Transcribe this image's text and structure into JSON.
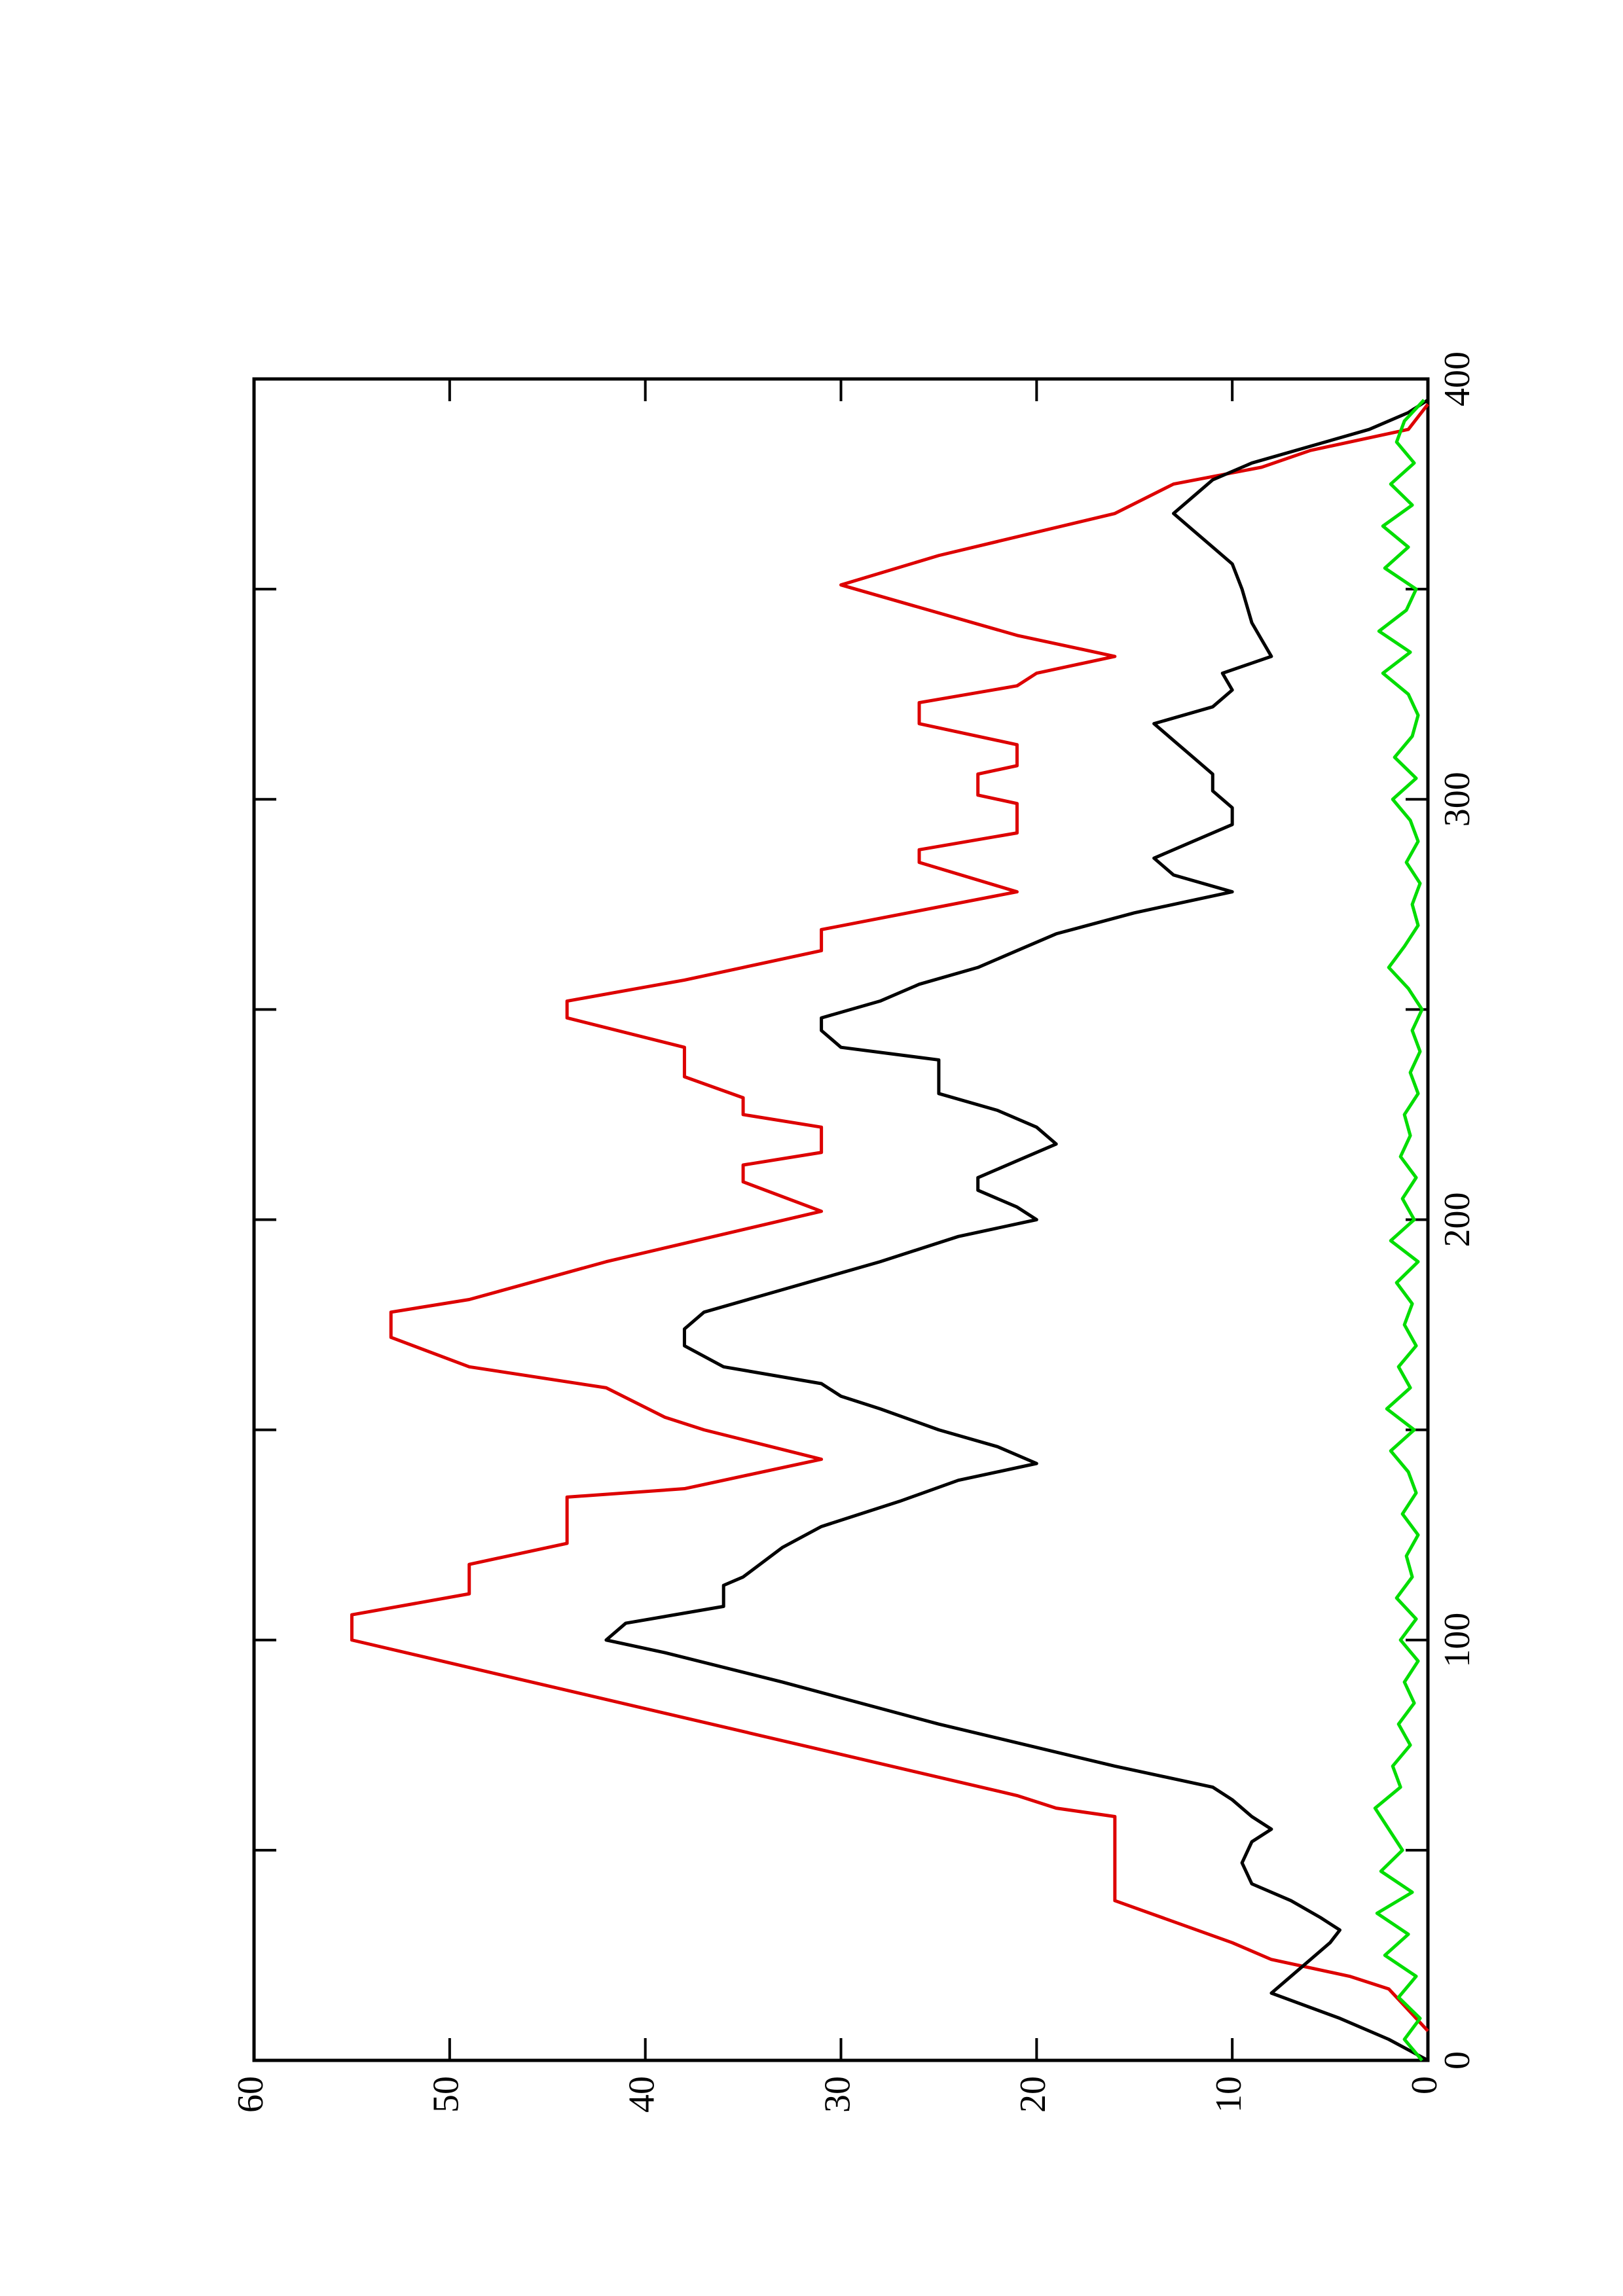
{
  "chart_data": {
    "type": "line",
    "xlim": [
      0,
      400
    ],
    "xticks": [
      0,
      100,
      200,
      300,
      400
    ],
    "xminor_ticks": [
      50,
      150,
      250,
      350
    ],
    "ylim": [
      0,
      60
    ],
    "yticks": [
      0,
      10,
      20,
      30,
      40,
      50,
      60
    ],
    "rotated": true,
    "series": [
      {
        "color": "#dd0000",
        "x": [
          7,
          17,
          20,
          24,
          28,
          33,
          38,
          58,
          60,
          63,
          100,
          106,
          111,
          118,
          123,
          134,
          136,
          143,
          150,
          153,
          160,
          165,
          172,
          178,
          181,
          190,
          202,
          209,
          213,
          216,
          222,
          225,
          229,
          234,
          241,
          248,
          252,
          257,
          260,
          264,
          269,
          278,
          285,
          288,
          292,
          299,
          301,
          306,
          308,
          313,
          318,
          323,
          327,
          330,
          334,
          339,
          351,
          358,
          368,
          375,
          379,
          383,
          388,
          394
        ],
        "values": [
          0,
          2,
          4,
          8,
          10,
          13,
          16,
          16,
          19,
          21,
          55,
          55,
          49,
          49,
          44,
          44,
          38,
          31,
          37,
          39,
          42,
          49,
          53,
          53,
          49,
          42,
          31,
          35,
          35,
          31,
          31,
          35,
          35,
          38,
          38,
          44,
          44,
          38,
          35,
          31,
          31,
          21,
          26,
          26,
          21,
          21,
          23,
          23,
          21,
          21,
          26,
          26,
          21,
          20,
          16,
          21,
          30,
          25,
          16,
          13,
          8.5,
          6,
          1,
          0
        ]
      },
      {
        "color": "#000000",
        "x": [
          0,
          5,
          10,
          16,
          20,
          24,
          28,
          31,
          34,
          38,
          42,
          47,
          52,
          55,
          58,
          62,
          65,
          70,
          80,
          90,
          97,
          100,
          104,
          108,
          113,
          115,
          122,
          127,
          133,
          138,
          142,
          146,
          150,
          155,
          158,
          161,
          165,
          170,
          174,
          178,
          182,
          190,
          196,
          200,
          203,
          207,
          210,
          214,
          218,
          222,
          226,
          230,
          238,
          241,
          245,
          248,
          252,
          256,
          260,
          264,
          268,
          273,
          278,
          282,
          286,
          290,
          294,
          298,
          302,
          306,
          310,
          314,
          318,
          322,
          326,
          330,
          334,
          338,
          342,
          350,
          356,
          360,
          364,
          368,
          372,
          376,
          380,
          384,
          388,
          392,
          395
        ],
        "values": [
          0,
          2,
          4.5,
          8,
          7,
          6,
          5,
          4.5,
          5.5,
          7,
          9,
          9.5,
          9,
          8,
          9,
          10,
          11,
          16,
          25,
          33,
          39,
          42,
          41,
          36,
          36,
          35,
          33,
          31,
          27,
          24,
          20,
          22,
          25,
          28,
          30,
          31,
          36,
          38,
          38,
          37,
          34,
          28,
          24,
          20,
          21,
          23,
          23,
          21,
          19,
          20,
          22,
          25,
          25,
          30,
          31,
          31,
          28,
          26,
          23,
          21,
          19,
          15,
          10,
          13,
          14,
          12,
          10,
          10,
          11,
          11,
          12,
          13,
          14,
          11,
          10,
          10.5,
          8,
          8.5,
          9,
          9.5,
          10,
          11,
          12,
          13,
          12,
          11,
          9,
          6,
          3,
          1,
          0
        ]
      },
      {
        "color": "#00dd00",
        "x": [
          0,
          5,
          10,
          15,
          20,
          25,
          30,
          35,
          40,
          45,
          50,
          55,
          60,
          65,
          70,
          75,
          80,
          85,
          90,
          95,
          100,
          105,
          110,
          115,
          120,
          125,
          130,
          135,
          140,
          145,
          150,
          155,
          160,
          165,
          170,
          175,
          180,
          185,
          190,
          195,
          200,
          205,
          210,
          215,
          220,
          225,
          230,
          235,
          240,
          245,
          250,
          255,
          260,
          265,
          270,
          275,
          280,
          285,
          290,
          295,
          300,
          305,
          310,
          315,
          320,
          325,
          330,
          335,
          340,
          345,
          350,
          355,
          360,
          365,
          370,
          375,
          380,
          385,
          390,
          395
        ],
        "values": [
          0.3,
          1.2,
          0.4,
          1.5,
          0.6,
          2.2,
          1.0,
          2.6,
          0.8,
          2.4,
          1.3,
          2.0,
          2.7,
          1.4,
          1.8,
          0.9,
          1.5,
          0.7,
          1.2,
          0.5,
          1.4,
          0.6,
          1.6,
          0.8,
          1.1,
          0.5,
          1.3,
          0.6,
          1.0,
          1.9,
          0.7,
          2.1,
          0.9,
          1.5,
          0.6,
          1.2,
          0.8,
          1.6,
          0.5,
          1.9,
          0.7,
          1.3,
          0.6,
          1.4,
          0.9,
          1.2,
          0.5,
          0.9,
          0.4,
          0.8,
          0.3,
          1.0,
          2.0,
          1.2,
          0.5,
          0.8,
          0.4,
          1.1,
          0.5,
          0.9,
          1.8,
          0.6,
          1.7,
          0.8,
          0.5,
          1.0,
          2.3,
          0.9,
          2.5,
          1.1,
          0.6,
          2.2,
          1.0,
          2.3,
          0.8,
          1.9,
          0.7,
          1.6,
          1.2,
          0.2
        ]
      }
    ]
  }
}
